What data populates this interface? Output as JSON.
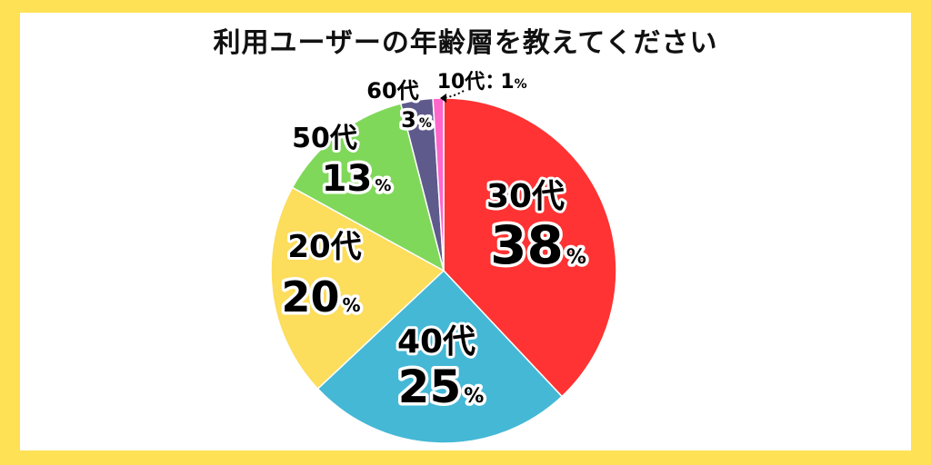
{
  "chart_data": {
    "type": "pie",
    "title": "利用ユーザーの年齢層を教えてください",
    "slices": [
      {
        "label": "30代",
        "value": 38,
        "color": "#FF3333"
      },
      {
        "label": "40代",
        "value": 25,
        "color": "#45B8D6"
      },
      {
        "label": "20代",
        "value": 20,
        "color": "#FCDD5C"
      },
      {
        "label": "50代",
        "value": 13,
        "color": "#80D85A"
      },
      {
        "label": "60代",
        "value": 3,
        "color": "#5E5A8C"
      },
      {
        "label": "10代",
        "value": 1,
        "color": "#FF66CC"
      }
    ],
    "unit": "%",
    "separator": "："
  },
  "colors": {
    "frame": "#FFE156",
    "background": "#FFFFFF"
  }
}
